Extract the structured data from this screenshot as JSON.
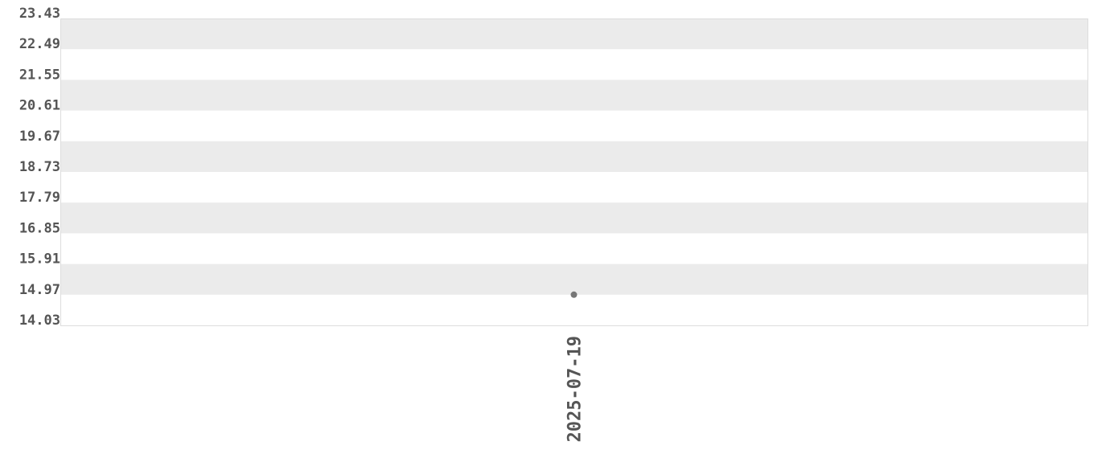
{
  "chart_data": {
    "type": "scatter",
    "x": [
      "2025-07-19"
    ],
    "values": [
      14.97
    ],
    "ylim": [
      14.03,
      23.43
    ],
    "y_ticks": [
      "23.43",
      "22.49",
      "21.55",
      "20.61",
      "19.67",
      "18.73",
      "17.79",
      "16.85",
      "15.91",
      "14.97",
      "14.03"
    ],
    "x_ticks": [
      "2025-07-19"
    ],
    "grid": "alternating horizontal bands",
    "colors": {
      "band": "#ebebeb",
      "point": "#777777",
      "text": "#555555",
      "border": "#dddddd"
    }
  }
}
